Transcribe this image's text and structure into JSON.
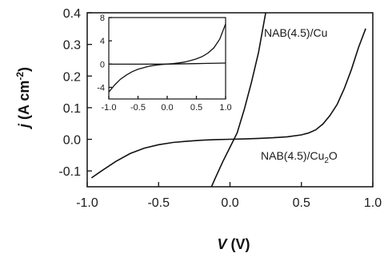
{
  "chart_data": [
    {
      "type": "line",
      "xlim": [
        -1.0,
        1.0
      ],
      "ylim": [
        -0.15,
        0.4
      ],
      "x_ticks": [
        -1.0,
        -0.5,
        0.0,
        0.5,
        1.0
      ],
      "x_tick_labels": [
        "-1.0",
        "-0.5",
        "0.0",
        "0.5",
        "1.0"
      ],
      "y_ticks": [
        -0.1,
        0.0,
        0.1,
        0.2,
        0.3,
        0.4
      ],
      "y_tick_labels": [
        "-0.1",
        "0.0",
        "0.1",
        "0.2",
        "0.3",
        "0.4"
      ],
      "xlabel": {
        "symbol": "V",
        "rest": " (V)"
      },
      "ylabel": {
        "symbol": "j",
        "pre": " (A cm",
        "sup": "-2",
        "post": ")"
      },
      "grid": false,
      "annotations": [
        {
          "id": "cu",
          "text": "NAB(4.5)/Cu"
        },
        {
          "id": "cu2o",
          "pre": "NAB(4.5)/Cu",
          "sub": "2",
          "post": "O"
        }
      ],
      "series": [
        {
          "id": "cu",
          "x": [
            -0.13,
            -0.1,
            -0.05,
            0.0,
            0.05,
            0.1,
            0.15,
            0.2,
            0.25
          ],
          "y": [
            -0.15,
            -0.12,
            -0.07,
            -0.025,
            0.02,
            0.095,
            0.18,
            0.275,
            0.4
          ]
        },
        {
          "id": "cu2o",
          "x": [
            -0.97,
            -0.9,
            -0.8,
            -0.7,
            -0.6,
            -0.5,
            -0.4,
            -0.3,
            -0.2,
            -0.1,
            0.0,
            0.1,
            0.2,
            0.3,
            0.4,
            0.5,
            0.55,
            0.6,
            0.65,
            0.7,
            0.75,
            0.8,
            0.85,
            0.9,
            0.95
          ],
          "y": [
            -0.122,
            -0.1,
            -0.07,
            -0.045,
            -0.028,
            -0.017,
            -0.01,
            -0.006,
            -0.003,
            -0.001,
            0.0,
            0.001,
            0.003,
            0.005,
            0.008,
            0.014,
            0.02,
            0.03,
            0.048,
            0.075,
            0.11,
            0.16,
            0.22,
            0.29,
            0.35
          ]
        }
      ]
    },
    {
      "type": "line",
      "role": "inset",
      "xlim": [
        -1.0,
        1.0
      ],
      "ylim": [
        -6,
        8
      ],
      "x_ticks": [
        -1.0,
        -0.5,
        0.0,
        0.5,
        1.0
      ],
      "x_tick_labels": [
        "-1.0",
        "-0.5",
        "0.0",
        "0.5",
        "1.0"
      ],
      "y_ticks": [
        -4,
        0,
        4,
        8
      ],
      "y_tick_labels": [
        "-4",
        "0",
        "4",
        "8"
      ],
      "series": [
        {
          "id": "inset-cu2o",
          "x": [
            -1.0,
            -0.9,
            -0.8,
            -0.7,
            -0.6,
            -0.5,
            -0.4,
            -0.3,
            -0.2,
            -0.1,
            0.0,
            0.1,
            0.2,
            0.3,
            0.4,
            0.5,
            0.6,
            0.7,
            0.8,
            0.9,
            1.0
          ],
          "y": [
            -4.8,
            -3.6,
            -2.6,
            -1.9,
            -1.3,
            -0.9,
            -0.6,
            -0.35,
            -0.2,
            -0.08,
            0.0,
            0.08,
            0.2,
            0.35,
            0.6,
            0.9,
            1.3,
            1.9,
            2.8,
            4.3,
            6.9
          ]
        },
        {
          "id": "inset-cu",
          "x": [
            -1.0,
            -0.5,
            0.0,
            0.5,
            1.0
          ],
          "y": [
            -0.02,
            -0.01,
            0.0,
            0.08,
            0.18
          ]
        }
      ]
    }
  ]
}
